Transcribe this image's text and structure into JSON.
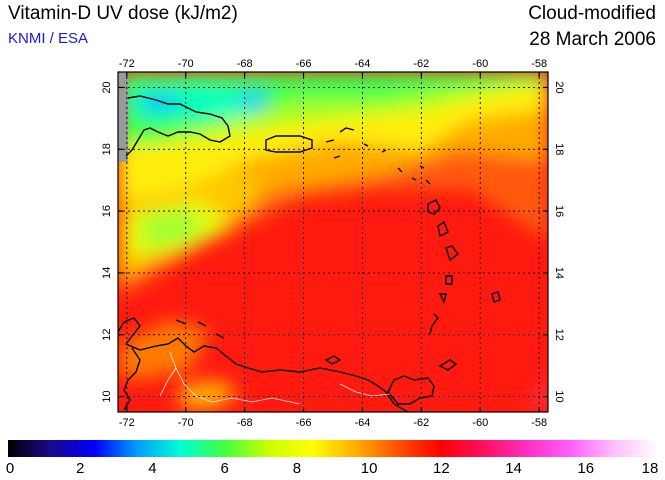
{
  "header": {
    "title": "Vitamin-D UV dose (kJ/m2)",
    "credit": "KNMI / ESA",
    "product": "Cloud-modified",
    "date": "28 March 2006"
  },
  "map": {
    "lon_range": [
      -72.3,
      -57.7
    ],
    "lat_range": [
      9.5,
      20.5
    ],
    "lon_ticks": [
      -72,
      -70,
      -68,
      -66,
      -64,
      -62,
      -60,
      -58
    ],
    "lat_ticks": [
      10,
      12,
      14,
      16,
      18,
      20
    ],
    "grid": true
  },
  "colorbar": {
    "min": 0,
    "max": 18,
    "labels": [
      "0",
      "2",
      "4",
      "6",
      "8",
      "10",
      "12",
      "14",
      "16",
      "18"
    ],
    "colors": [
      "#000000",
      "#1a0a8c",
      "#0000ff",
      "#00a0ff",
      "#00ffd0",
      "#40ff40",
      "#c8ff00",
      "#ffff00",
      "#ffb000",
      "#ff5000",
      "#ff0000",
      "#ff1060",
      "#ff30c0",
      "#ff60ff",
      "#ffc0ff",
      "#ffffff"
    ]
  }
}
